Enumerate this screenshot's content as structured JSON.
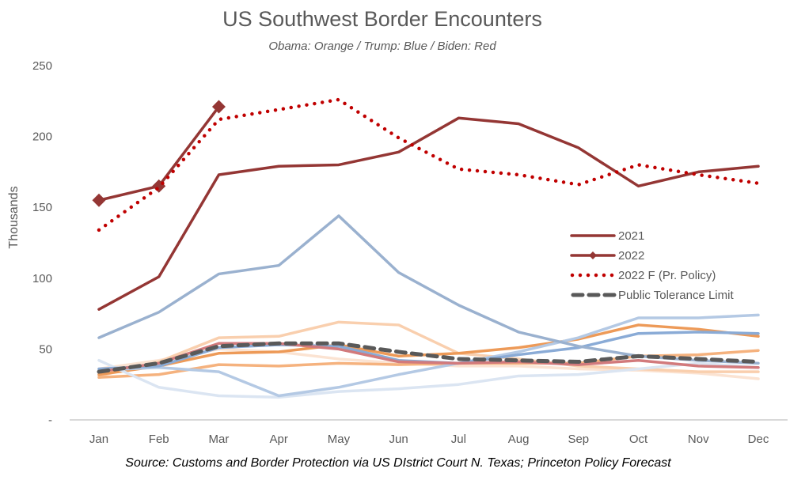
{
  "chart_data": {
    "type": "line",
    "title": "US Southwest Border Encounters",
    "subtitle": "Obama: Orange / Trump: Blue / Biden: Red",
    "xlabel": "",
    "ylabel": "Thousands",
    "ylim": [
      0,
      250
    ],
    "yticks": [
      {
        "value": 0,
        "label": "-"
      },
      {
        "value": 50,
        "label": "50"
      },
      {
        "value": 100,
        "label": "100"
      },
      {
        "value": 150,
        "label": "150"
      },
      {
        "value": 200,
        "label": "200"
      },
      {
        "value": 250,
        "label": "250"
      }
    ],
    "grid": false,
    "legend_position": "center-right",
    "source": "Source: Customs and Border Protection via US DIstrict Court N. Texas; Princeton Policy Forecast",
    "categories": [
      "Jan",
      "Feb",
      "Mar",
      "Apr",
      "May",
      "Jun",
      "Jul",
      "Aug",
      "Sep",
      "Oct",
      "Nov",
      "Dec"
    ],
    "series": [
      {
        "name": "Obama (light)",
        "legend": false,
        "color": "#fbe3d2",
        "style": "solid",
        "values": [
          36,
          42,
          50,
          48,
          43,
          40,
          38,
          38,
          36,
          35,
          33,
          29
        ]
      },
      {
        "name": "Obama (pale)",
        "legend": false,
        "color": "#f9cfae",
        "style": "solid",
        "values": [
          31,
          41,
          58,
          59,
          69,
          67,
          47,
          43,
          38,
          36,
          34,
          34
        ]
      },
      {
        "name": "Obama (medium)",
        "legend": false,
        "color": "#f5b27e",
        "style": "solid",
        "values": [
          30,
          32,
          39,
          38,
          40,
          39,
          40,
          40,
          40,
          45,
          46,
          49
        ]
      },
      {
        "name": "Obama (strong)",
        "legend": false,
        "color": "#ed9a58",
        "style": "solid",
        "values": [
          32,
          38,
          47,
          48,
          53,
          45,
          47,
          51,
          57,
          67,
          64,
          59
        ]
      },
      {
        "name": "Trump (faint)",
        "legend": false,
        "color": "#dbe5f2",
        "style": "solid",
        "values": [
          42,
          23,
          17,
          16,
          20,
          22,
          25,
          31,
          32,
          36,
          40,
          37
        ]
      },
      {
        "name": "Trump (light)",
        "legend": false,
        "color": "#b4c9e4",
        "style": "solid",
        "values": [
          35,
          37,
          34,
          17,
          23,
          32,
          40,
          48,
          58,
          72,
          72,
          74
        ]
      },
      {
        "name": "Trump (medium)",
        "legend": false,
        "color": "#8aabd6",
        "style": "solid",
        "values": [
          36,
          38,
          51,
          53,
          52,
          42,
          40,
          46,
          51,
          61,
          62,
          61
        ]
      },
      {
        "name": "Trump 2019",
        "legend": false,
        "color": "#9ab1cf",
        "style": "solid",
        "values": [
          58,
          76,
          103,
          109,
          144,
          104,
          81,
          62,
          52,
          45,
          42,
          40
        ]
      },
      {
        "name": "Biden (light)",
        "legend": false,
        "color": "#d27a7c",
        "style": "solid",
        "values": [
          34,
          40,
          54,
          54,
          50,
          41,
          40,
          41,
          39,
          42,
          38,
          37
        ]
      },
      {
        "name": "2021",
        "legend": true,
        "color": "#943634",
        "style": "solid",
        "values": [
          78,
          101,
          173,
          179,
          180,
          189,
          213,
          209,
          192,
          165,
          175,
          179
        ]
      },
      {
        "name": "2022",
        "legend": true,
        "color": "#943634",
        "style": "solid-marker",
        "values": [
          155,
          165,
          221,
          null,
          null,
          null,
          null,
          null,
          null,
          null,
          null,
          null
        ]
      },
      {
        "name": "2022 F (Pr. Policy)",
        "legend": true,
        "color": "#c00000",
        "style": "dotted",
        "values": [
          134,
          164,
          212,
          219,
          226,
          199,
          177,
          173,
          166,
          180,
          173,
          167
        ]
      },
      {
        "name": "Public Tolerance Limit",
        "legend": true,
        "color": "#595959",
        "style": "dashed",
        "values": [
          34,
          40,
          52,
          54,
          54,
          48,
          43,
          42,
          41,
          45,
          43,
          41
        ]
      }
    ]
  }
}
